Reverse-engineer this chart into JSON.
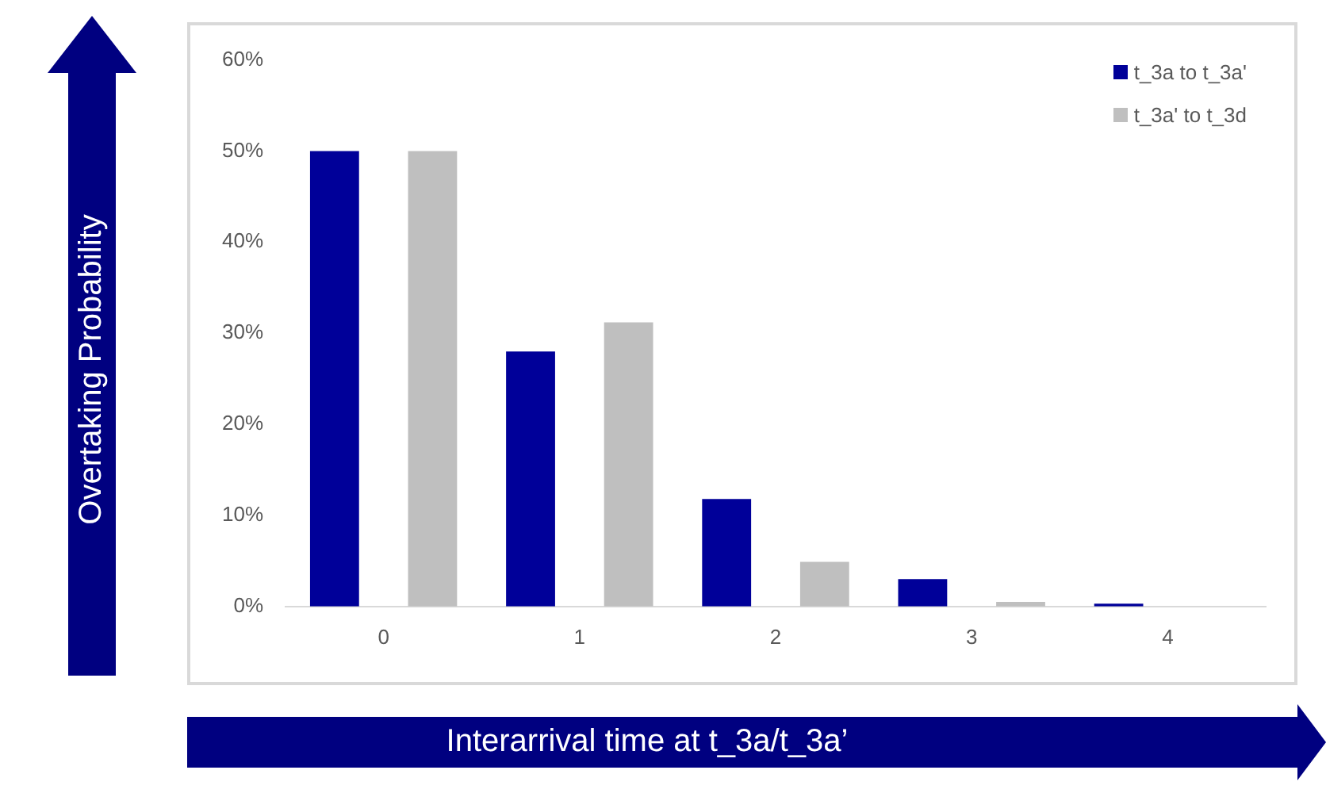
{
  "chart_data": {
    "type": "bar",
    "xlabel": "Interarrival time at t_3a/t_3a’",
    "ylabel": "Overtaking Probability",
    "categories": [
      "0",
      "1",
      "2",
      "3",
      "4"
    ],
    "series": [
      {
        "name": "t_3a to t_3a'",
        "color": "#000099",
        "values": [
          50,
          28,
          11.8,
          3,
          0.3
        ]
      },
      {
        "name": "t_3a' to t_3d",
        "color": "#bfbfbf",
        "values": [
          50,
          31.2,
          4.9,
          0.5,
          0
        ]
      }
    ],
    "ylim": [
      0,
      60
    ],
    "yticks": [
      {
        "value": 0,
        "label": "0%"
      },
      {
        "value": 10,
        "label": "10%"
      },
      {
        "value": 20,
        "label": "20%"
      },
      {
        "value": 30,
        "label": "30%"
      },
      {
        "value": 40,
        "label": "40%"
      },
      {
        "value": 50,
        "label": "50%"
      },
      {
        "value": 60,
        "label": "60%"
      }
    ],
    "grid": false,
    "legend": "top right"
  }
}
